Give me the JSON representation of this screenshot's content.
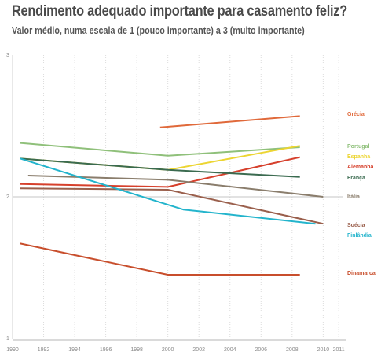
{
  "title": "Rendimento adequado importante para casamento feliz?",
  "subtitle": "Valor médio, numa escala de 1 (pouco importante) a 3 (muito importante)",
  "chart_data": {
    "type": "line",
    "title": "Rendimento adequado importante para casamento feliz?",
    "subtitle": "Valor médio, numa escala de 1 (pouco importante) a 3 (muito importante)",
    "xlabel": "",
    "ylabel": "",
    "xlim": [
      1990,
      2011.5
    ],
    "ylim": [
      1,
      3
    ],
    "x_ticks": [
      "1990",
      "1992",
      "1994",
      "1996",
      "1998",
      "2000",
      "2002",
      "2004",
      "2006",
      "2008",
      "2010",
      "2011"
    ],
    "y_ticks": [
      "3",
      "2",
      "1"
    ],
    "grid": "vertical dotted",
    "series": [
      {
        "name": "Grécia",
        "color": "#e0693a",
        "x": [
          1999.5,
          2008.5
        ],
        "y": [
          2.49,
          2.57
        ]
      },
      {
        "name": "Portugal",
        "color": "#8fc07a",
        "x": [
          1990.5,
          2000,
          2008.5
        ],
        "y": [
          2.38,
          2.29,
          2.35
        ]
      },
      {
        "name": "Espanha",
        "color": "#ecd532",
        "x": [
          1990.5,
          2000,
          2008.5
        ],
        "y": [
          2.27,
          2.19,
          2.36
        ]
      },
      {
        "name": "Alemanha",
        "color": "#d6402c",
        "x": [
          1990.5,
          2000,
          2008.5
        ],
        "y": [
          2.09,
          2.07,
          2.28
        ]
      },
      {
        "name": "França",
        "color": "#3b6b50",
        "x": [
          1990.5,
          2000,
          2008.5
        ],
        "y": [
          2.27,
          2.19,
          2.14
        ]
      },
      {
        "name": "Itália",
        "color": "#8a7d6c",
        "x": [
          1991,
          2000,
          2010
        ],
        "y": [
          2.15,
          2.12,
          2.0
        ]
      },
      {
        "name": "Suécia",
        "color": "#9a5f4c",
        "x": [
          1990.5,
          2000,
          2010
        ],
        "y": [
          2.06,
          2.05,
          1.81
        ]
      },
      {
        "name": "Finlândia",
        "color": "#23b4cc",
        "x": [
          1990.5,
          2001,
          2009.5
        ],
        "y": [
          2.27,
          1.91,
          1.81
        ]
      },
      {
        "name": "Dinamarca",
        "color": "#c84e2c",
        "x": [
          1990.5,
          2000,
          2008.5
        ],
        "y": [
          1.67,
          1.45,
          1.45
        ]
      }
    ]
  }
}
